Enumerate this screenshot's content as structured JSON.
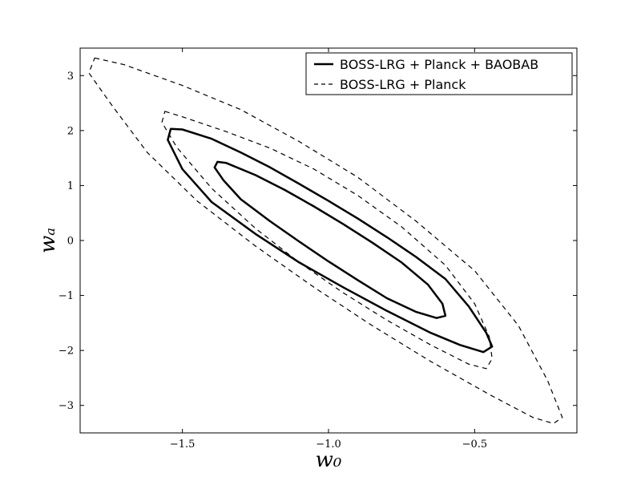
{
  "chart_data": {
    "type": "line",
    "title": "",
    "xlabel": "w₀",
    "ylabel": "wₐ",
    "xlim": [
      -1.85,
      -0.15
    ],
    "ylim": [
      -3.5,
      3.5
    ],
    "xticks": [
      -1.5,
      -1.0,
      -0.5
    ],
    "xtick_labels": [
      "−1.5",
      "−1.0",
      "−0.5"
    ],
    "yticks": [
      -3,
      -2,
      -1,
      0,
      1,
      2,
      3
    ],
    "ytick_labels": [
      "−3",
      "−2",
      "−1",
      "0",
      "1",
      "2",
      "3"
    ],
    "grid": false,
    "legend_position": "top-right",
    "series": [
      {
        "name": "BOSS-LRG + Planck + BAOBAB",
        "style": "solid",
        "color": "#000000",
        "contours": [
          {
            "points": [
              [
                -1.54,
                2.03
              ],
              [
                -1.5,
                2.02
              ],
              [
                -1.4,
                1.85
              ],
              [
                -1.3,
                1.6
              ],
              [
                -1.2,
                1.33
              ],
              [
                -1.1,
                1.03
              ],
              [
                -1.0,
                0.72
              ],
              [
                -0.9,
                0.4
              ],
              [
                -0.8,
                0.06
              ],
              [
                -0.7,
                -0.3
              ],
              [
                -0.6,
                -0.7
              ],
              [
                -0.52,
                -1.2
              ],
              [
                -0.46,
                -1.68
              ],
              [
                -0.44,
                -1.93
              ],
              [
                -0.47,
                -2.03
              ],
              [
                -0.55,
                -1.9
              ],
              [
                -0.65,
                -1.68
              ],
              [
                -0.8,
                -1.28
              ],
              [
                -0.95,
                -0.85
              ],
              [
                -1.1,
                -0.4
              ],
              [
                -1.25,
                0.12
              ],
              [
                -1.4,
                0.7
              ],
              [
                -1.5,
                1.3
              ],
              [
                -1.55,
                1.83
              ],
              [
                -1.54,
                2.03
              ]
            ]
          },
          {
            "points": [
              [
                -1.38,
                1.43
              ],
              [
                -1.35,
                1.41
              ],
              [
                -1.25,
                1.19
              ],
              [
                -1.15,
                0.92
              ],
              [
                -1.05,
                0.62
              ],
              [
                -0.95,
                0.3
              ],
              [
                -0.85,
                -0.04
              ],
              [
                -0.75,
                -0.4
              ],
              [
                -0.66,
                -0.8
              ],
              [
                -0.61,
                -1.15
              ],
              [
                -0.6,
                -1.37
              ],
              [
                -0.63,
                -1.41
              ],
              [
                -0.7,
                -1.3
              ],
              [
                -0.8,
                -1.05
              ],
              [
                -0.9,
                -0.72
              ],
              [
                -1.0,
                -0.38
              ],
              [
                -1.1,
                -0.02
              ],
              [
                -1.2,
                0.35
              ],
              [
                -1.3,
                0.75
              ],
              [
                -1.36,
                1.1
              ],
              [
                -1.39,
                1.33
              ],
              [
                -1.38,
                1.43
              ]
            ]
          }
        ]
      },
      {
        "name": "BOSS-LRG + Planck",
        "style": "dashed",
        "color": "#000000",
        "contours": [
          {
            "points": [
              [
                -1.56,
                2.35
              ],
              [
                -1.5,
                2.25
              ],
              [
                -1.35,
                1.98
              ],
              [
                -1.2,
                1.68
              ],
              [
                -1.05,
                1.3
              ],
              [
                -0.9,
                0.82
              ],
              [
                -0.75,
                0.25
              ],
              [
                -0.6,
                -0.45
              ],
              [
                -0.5,
                -1.15
              ],
              [
                -0.45,
                -1.75
              ],
              [
                -0.44,
                -2.15
              ],
              [
                -0.46,
                -2.33
              ],
              [
                -0.52,
                -2.25
              ],
              [
                -0.65,
                -1.9
              ],
              [
                -0.8,
                -1.45
              ],
              [
                -0.95,
                -0.95
              ],
              [
                -1.1,
                -0.4
              ],
              [
                -1.25,
                0.22
              ],
              [
                -1.4,
                0.95
              ],
              [
                -1.52,
                1.7
              ],
              [
                -1.57,
                2.15
              ],
              [
                -1.56,
                2.35
              ]
            ]
          },
          {
            "points": [
              [
                -1.8,
                3.32
              ],
              [
                -1.7,
                3.2
              ],
              [
                -1.5,
                2.82
              ],
              [
                -1.3,
                2.38
              ],
              [
                -1.1,
                1.8
              ],
              [
                -0.9,
                1.15
              ],
              [
                -0.7,
                0.35
              ],
              [
                -0.5,
                -0.55
              ],
              [
                -0.35,
                -1.55
              ],
              [
                -0.25,
                -2.55
              ],
              [
                -0.2,
                -3.22
              ],
              [
                -0.23,
                -3.33
              ],
              [
                -0.3,
                -3.22
              ],
              [
                -0.45,
                -2.8
              ],
              [
                -0.65,
                -2.2
              ],
              [
                -0.85,
                -1.55
              ],
              [
                -1.05,
                -0.85
              ],
              [
                -1.25,
                -0.1
              ],
              [
                -1.45,
                0.72
              ],
              [
                -1.62,
                1.6
              ],
              [
                -1.74,
                2.45
              ],
              [
                -1.82,
                3.05
              ],
              [
                -1.8,
                3.32
              ]
            ]
          }
        ]
      }
    ]
  }
}
